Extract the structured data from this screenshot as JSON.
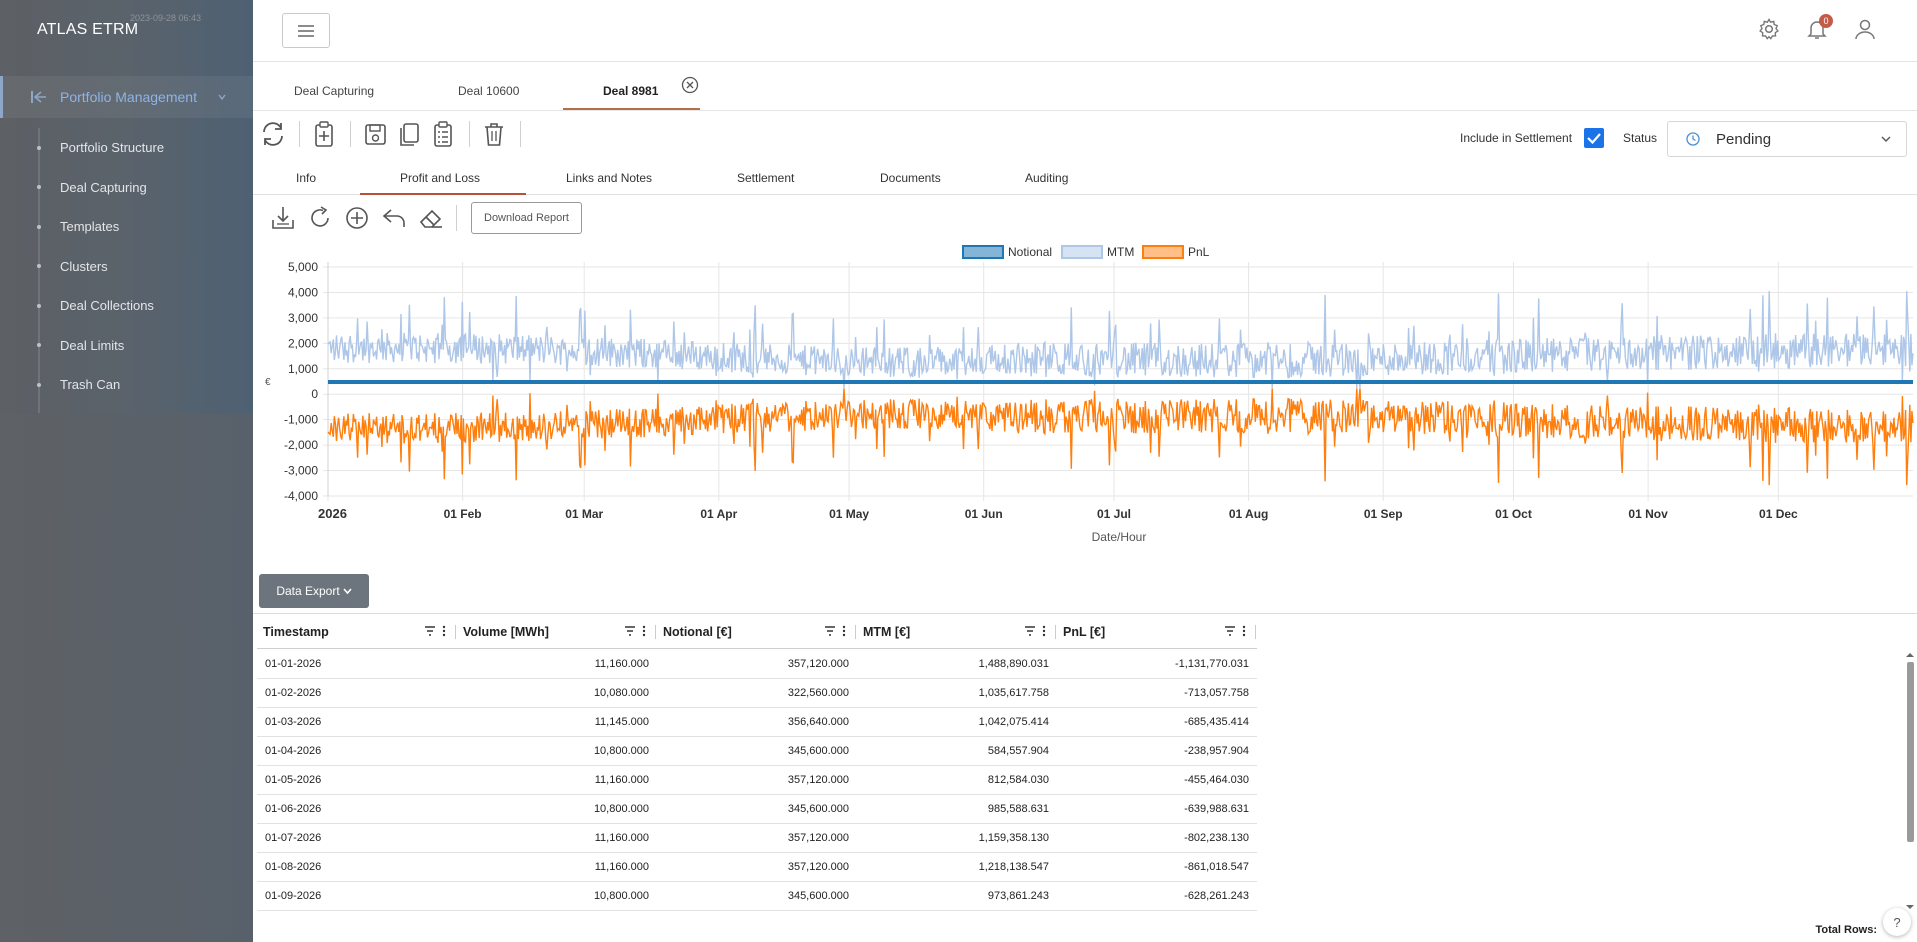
{
  "app": {
    "title": "ATLAS ETRM",
    "timestamp": "2023-09-28 06:43"
  },
  "sidebar": {
    "section_label": "Portfolio Management",
    "items": [
      "Portfolio Structure",
      "Deal Capturing",
      "Templates",
      "Clusters",
      "Deal Collections",
      "Deal Limits",
      "Trash Can"
    ]
  },
  "header": {
    "notification_count": "0"
  },
  "deal_tabs": [
    "Deal Capturing",
    "Deal 10600",
    "Deal 8981"
  ],
  "toolbar": {
    "settlement_label": "Include in Settlement",
    "status_label": "Status",
    "status_value": "Pending"
  },
  "section_tabs": [
    "Info",
    "Profit and Loss",
    "Links and Notes",
    "Settlement",
    "Documents",
    "Auditing"
  ],
  "chart_tools": {
    "download_label": "Download Report"
  },
  "chart_data": {
    "type": "line",
    "xlabel": "Date/Hour",
    "ylabel": "€",
    "ylim": [
      -4000,
      5000
    ],
    "yticks": [
      "5,000",
      "4,000",
      "3,000",
      "2,000",
      "1,000",
      "0",
      "-1,000",
      "-2,000",
      "-3,000",
      "-4,000"
    ],
    "xticks": [
      "2026",
      "01 Feb",
      "01 Mar",
      "01 Apr",
      "01 May",
      "01 Jun",
      "01 Jul",
      "01 Aug",
      "01 Sep",
      "01 Oct",
      "01 Nov",
      "01 Dec"
    ],
    "legend_position": "top",
    "series": [
      {
        "name": "Notional",
        "color": "#1f77b4",
        "approx_level": 480
      },
      {
        "name": "MTM",
        "color": "#aec7e8",
        "approx_range": [
          500,
          3000
        ]
      },
      {
        "name": "PnL",
        "color": "#ff7f0e",
        "approx_range": [
          -3000,
          -300
        ]
      }
    ]
  },
  "export_label": "Data Export",
  "grid": {
    "columns": [
      "Timestamp",
      "Volume [MWh]",
      "Notional [€]",
      "MTM [€]",
      "PnL [€]"
    ],
    "rows": [
      [
        "01-01-2026",
        "11,160.000",
        "357,120.000",
        "1,488,890.031",
        "-1,131,770.031"
      ],
      [
        "01-02-2026",
        "10,080.000",
        "322,560.000",
        "1,035,617.758",
        "-713,057.758"
      ],
      [
        "01-03-2026",
        "11,145.000",
        "356,640.000",
        "1,042,075.414",
        "-685,435.414"
      ],
      [
        "01-04-2026",
        "10,800.000",
        "345,600.000",
        "584,557.904",
        "-238,957.904"
      ],
      [
        "01-05-2026",
        "11,160.000",
        "357,120.000",
        "812,584.030",
        "-455,464.030"
      ],
      [
        "01-06-2026",
        "10,800.000",
        "345,600.000",
        "985,588.631",
        "-639,988.631"
      ],
      [
        "01-07-2026",
        "11,160.000",
        "357,120.000",
        "1,159,358.130",
        "-802,238.130"
      ],
      [
        "01-08-2026",
        "11,160.000",
        "357,120.000",
        "1,218,138.547",
        "-861,018.547"
      ],
      [
        "01-09-2026",
        "10,800.000",
        "345,600.000",
        "973,861.243",
        "-628,261.243"
      ]
    ],
    "total_rows_label": "Total Rows:"
  }
}
